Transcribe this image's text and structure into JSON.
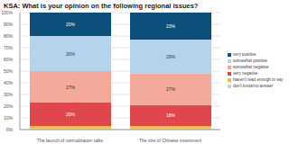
{
  "chart_data": {
    "type": "bar",
    "title": "KSA: What is your opinion on the following regional issues?",
    "stacked": true,
    "data_labels": true,
    "grid": true,
    "legend": "right",
    "categories": [
      "The launch of normalization talks between Arab states and Israel",
      "The role of Chinese investment in various Arab states"
    ],
    "ylim": [
      0,
      100
    ],
    "yticks": [
      {
        "value": 0,
        "label": "0%"
      },
      {
        "value": 10,
        "label": "10%"
      },
      {
        "value": 20,
        "label": "20%"
      },
      {
        "value": 30,
        "label": "30%"
      },
      {
        "value": 40,
        "label": "40%"
      },
      {
        "value": 50,
        "label": "50%"
      },
      {
        "value": 60,
        "label": "60%"
      },
      {
        "value": 70,
        "label": "70%"
      },
      {
        "value": 80,
        "label": "80%"
      },
      {
        "value": 90,
        "label": "90%"
      },
      {
        "value": 100,
        "label": "100%"
      }
    ],
    "series": [
      {
        "name": "don't know/no answer",
        "color": "#d9cfb4",
        "values": [
          1,
          1
        ],
        "value_labels": [
          null,
          null
        ]
      },
      {
        "name": "haven't read enough to say",
        "color": "#f2b84b",
        "values": [
          2,
          2
        ],
        "value_labels": [
          null,
          null
        ]
      },
      {
        "name": "very negative",
        "color": "#e0474c",
        "values": [
          20,
          18
        ],
        "value_labels": [
          "20%",
          "18%"
        ]
      },
      {
        "name": "somewhat negative",
        "color": "#f4a99a",
        "values": [
          27,
          27
        ],
        "value_labels": [
          "27%",
          "27%"
        ]
      },
      {
        "name": "somewhat positive",
        "color": "#b3d4ec",
        "values": [
          30,
          29
        ],
        "value_labels": [
          "30%",
          "29%"
        ]
      },
      {
        "name": "very positive",
        "color": "#0b4f7a",
        "values": [
          20,
          23
        ],
        "value_labels": [
          "20%",
          "23%"
        ]
      }
    ]
  }
}
